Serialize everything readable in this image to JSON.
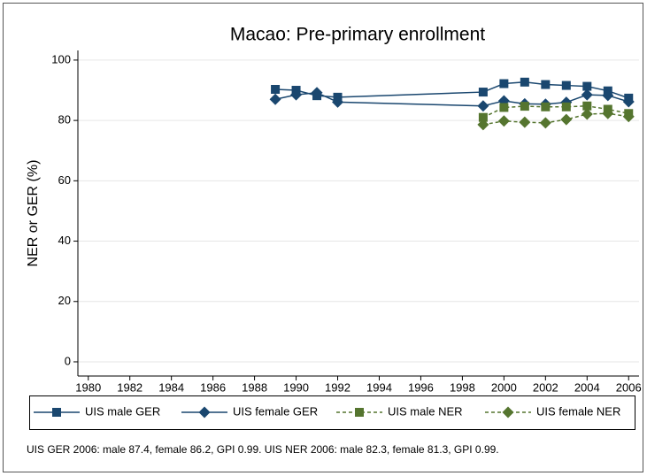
{
  "chart_data": {
    "type": "line",
    "title": "Macao: Pre-primary enrollment",
    "y_label": "NER or GER (%)",
    "note": "UIS GER 2006: male 87.4, female 86.2, GPI 0.99. UIS NER 2006: male 82.3, female 81.3, GPI 0.99.",
    "x": [
      1989,
      1990,
      1991,
      1992,
      1999,
      2000,
      2001,
      2002,
      2003,
      2004,
      2005,
      2006
    ],
    "series": [
      {
        "name": "UIS male GER",
        "color": "#1a476f",
        "marker": "square",
        "dash": false,
        "values": [
          90.3,
          90.0,
          88.2,
          87.7,
          89.4,
          92.2,
          92.7,
          91.9,
          91.6,
          91.3,
          89.8,
          87.4
        ]
      },
      {
        "name": "UIS female GER",
        "color": "#1a476f",
        "marker": "diamond",
        "dash": false,
        "values": [
          87.0,
          88.5,
          89.2,
          86.1,
          84.8,
          86.5,
          85.5,
          85.4,
          86.0,
          88.5,
          88.3,
          86.2
        ]
      },
      {
        "name": "UIS male NER",
        "color": "#55752f",
        "marker": "square",
        "dash": true,
        "values": [
          null,
          null,
          null,
          null,
          81.0,
          84.3,
          84.7,
          84.5,
          84.5,
          84.8,
          83.7,
          82.3
        ]
      },
      {
        "name": "UIS female NER",
        "color": "#55752f",
        "marker": "diamond",
        "dash": true,
        "values": [
          null,
          null,
          null,
          null,
          78.6,
          79.8,
          79.4,
          79.2,
          80.3,
          82.1,
          82.3,
          81.3
        ]
      }
    ],
    "xlim": [
      1979.5,
      2006.5
    ],
    "xticks": [
      1980,
      1982,
      1984,
      1986,
      1988,
      1990,
      1992,
      1994,
      1996,
      1998,
      2000,
      2002,
      2004,
      2006
    ],
    "ylim": [
      -4.7,
      103.2
    ],
    "yticks": [
      0,
      20,
      40,
      60,
      80,
      100
    ],
    "grid": true,
    "legend": "bottom"
  }
}
